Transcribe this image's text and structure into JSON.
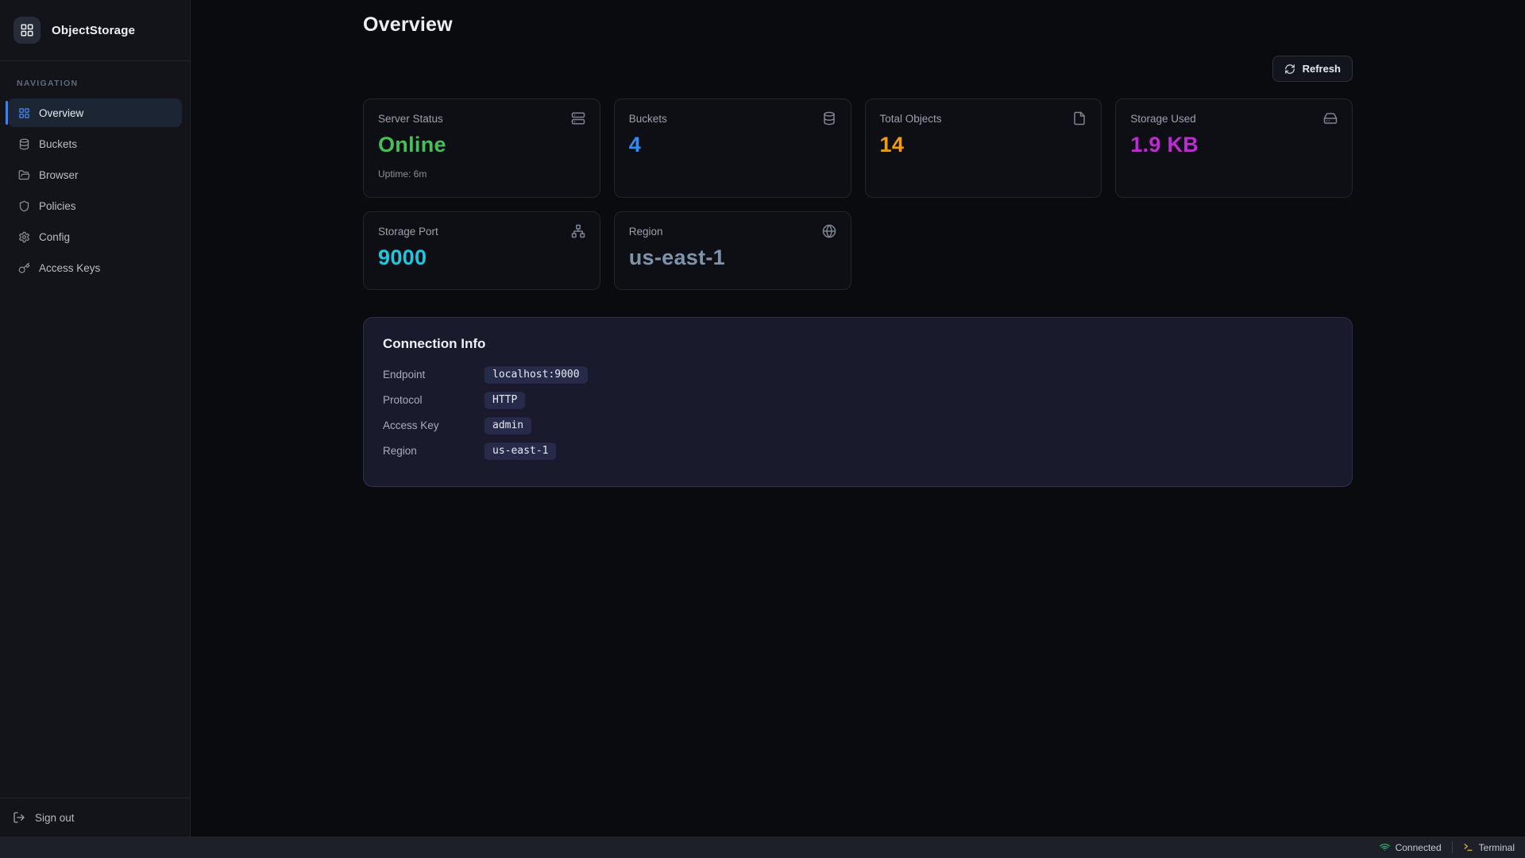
{
  "app": {
    "title": "ObjectStorage",
    "logo_icon": "grid-icon"
  },
  "sidebar": {
    "section_label": "NAVIGATION",
    "items": [
      {
        "label": "Overview",
        "icon": "grid-icon",
        "active": true
      },
      {
        "label": "Buckets",
        "icon": "database-icon",
        "active": false
      },
      {
        "label": "Browser",
        "icon": "folder-icon",
        "active": false
      },
      {
        "label": "Policies",
        "icon": "shield-icon",
        "active": false
      },
      {
        "label": "Config",
        "icon": "gear-icon",
        "active": false
      },
      {
        "label": "Access Keys",
        "icon": "key-icon",
        "active": false
      }
    ],
    "sign_out_label": "Sign out",
    "sign_out_icon": "logout-icon"
  },
  "header": {
    "title": "Overview",
    "refresh_label": "Refresh",
    "refresh_icon": "refresh-icon"
  },
  "stat_cards": [
    {
      "label": "Server Status",
      "value": "Online",
      "subtext": "Uptime: 6m",
      "icon": "server-icon",
      "color": "#43c157"
    },
    {
      "label": "Buckets",
      "value": "4",
      "subtext": "",
      "icon": "database-icon",
      "color": "#2f8cf2"
    },
    {
      "label": "Total Objects",
      "value": "14",
      "subtext": "",
      "icon": "file-icon",
      "color": "#f59b0e"
    },
    {
      "label": "Storage Used",
      "value": "1.9 KB",
      "subtext": "",
      "icon": "harddrive-icon",
      "color": "#bd2bd1"
    },
    {
      "label": "Storage Port",
      "value": "9000",
      "subtext": "",
      "icon": "network-icon",
      "color": "#1ec6e0"
    },
    {
      "label": "Region",
      "value": "us-east-1",
      "subtext": "",
      "icon": "globe-icon",
      "color": "#7f94ac"
    }
  ],
  "connection_info": {
    "title": "Connection Info",
    "rows": [
      {
        "label": "Endpoint",
        "value": "localhost:9000"
      },
      {
        "label": "Protocol",
        "value": "HTTP"
      },
      {
        "label": "Access Key",
        "value": "admin"
      },
      {
        "label": "Region",
        "value": "us-east-1"
      }
    ]
  },
  "status_bar": {
    "connected_label": "Connected",
    "connected_icon": "wifi-icon",
    "connected_color": "#2fbe6a",
    "terminal_label": "Terminal",
    "terminal_icon": "terminal-prompt-icon",
    "terminal_icon_color": "#d9a93a"
  },
  "colors": {
    "accent": "#3b82f6",
    "panel_bg": "#191b2d",
    "card_bg": "#0d0f14"
  }
}
